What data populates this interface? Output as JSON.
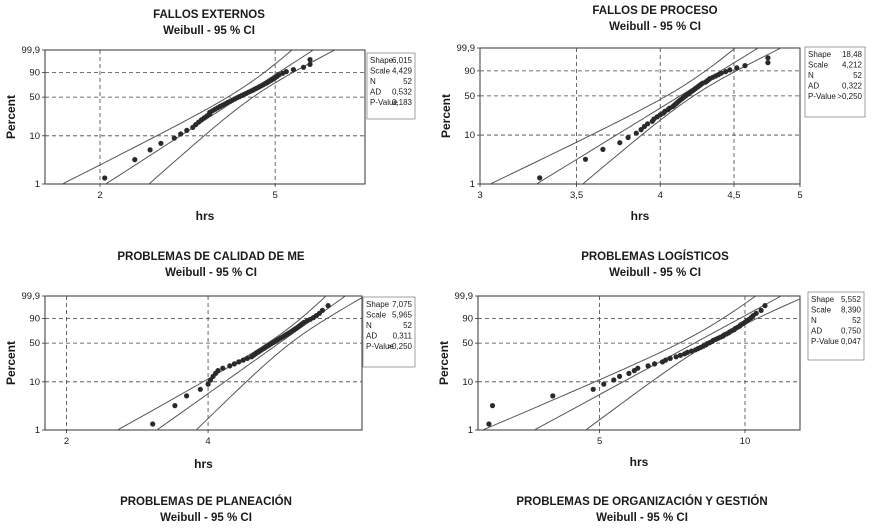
{
  "chart_data": [
    {
      "type": "scatter",
      "title": "FALLOS EXTERNOS",
      "subtitle": "Weibull - 95 % CI",
      "xlabel": "hrs",
      "ylabel": "Percent",
      "x_scale": "log",
      "y_scale": "weibull-probability",
      "x_ticks": [
        "2",
        "5"
      ],
      "y_ticks": [
        "1",
        "10",
        "50",
        "90",
        "99,9"
      ],
      "xlim": [
        1.5,
        8
      ],
      "stats": [
        {
          "label": "Shape",
          "value": "6,015"
        },
        {
          "label": "Scale",
          "value": "4,429"
        },
        {
          "label": "N",
          "value": "52"
        },
        {
          "label": "AD",
          "value": "0,532"
        },
        {
          "label": "P-Value",
          "value": "0,183"
        }
      ],
      "shape": 6.015,
      "scale": 4.429,
      "n": 52,
      "points": [
        2.05,
        2.4,
        2.6,
        2.75,
        2.95,
        3.05,
        3.15,
        3.25,
        3.3,
        3.35,
        3.4,
        3.45,
        3.5,
        3.55,
        3.55,
        3.6,
        3.65,
        3.7,
        3.75,
        3.8,
        3.85,
        3.9,
        3.95,
        4.0,
        4.05,
        4.1,
        4.15,
        4.2,
        4.25,
        4.3,
        4.35,
        4.4,
        4.45,
        4.5,
        4.55,
        4.6,
        4.65,
        4.7,
        4.75,
        4.8,
        4.85,
        4.9,
        4.95,
        5.0,
        5.05,
        5.1,
        5.2,
        5.3,
        5.5,
        5.8,
        6.0,
        6.0
      ]
    },
    {
      "type": "scatter",
      "title": "FALLOS DE PROCESO",
      "subtitle": "Weibull - 95 % CI",
      "xlabel": "hrs",
      "ylabel": "Percent",
      "x_scale": "log",
      "y_scale": "weibull-probability",
      "x_ticks": [
        "3",
        "3,5",
        "4",
        "4,5",
        "5"
      ],
      "y_ticks": [
        "1",
        "10",
        "50",
        "90",
        "99,9"
      ],
      "xlim": [
        3,
        5
      ],
      "stats": [
        {
          "label": "Shape",
          "value": "18,48"
        },
        {
          "label": "Scale",
          "value": "4,212"
        },
        {
          "label": "N",
          "value": "52"
        },
        {
          "label": "AD",
          "value": "0,322"
        },
        {
          "label": "P-Value",
          "value": ">0,250"
        }
      ],
      "shape": 18.48,
      "scale": 4.212,
      "n": 52,
      "points": [
        3.3,
        3.55,
        3.65,
        3.75,
        3.8,
        3.85,
        3.88,
        3.9,
        3.92,
        3.95,
        3.96,
        3.98,
        4.0,
        4.02,
        4.03,
        4.05,
        4.06,
        4.08,
        4.09,
        4.1,
        4.11,
        4.12,
        4.13,
        4.14,
        4.15,
        4.16,
        4.17,
        4.18,
        4.19,
        4.2,
        4.21,
        4.22,
        4.23,
        4.24,
        4.25,
        4.26,
        4.27,
        4.28,
        4.3,
        4.31,
        4.32,
        4.33,
        4.35,
        4.37,
        4.39,
        4.41,
        4.44,
        4.47,
        4.52,
        4.58,
        4.75,
        4.75
      ]
    },
    {
      "type": "scatter",
      "title": "PROBLEMAS DE CALIDAD DE ME",
      "subtitle": "Weibull - 95 % CI",
      "xlabel": "hrs",
      "ylabel": "Percent",
      "x_scale": "log",
      "y_scale": "weibull-probability",
      "x_ticks": [
        "2",
        "4"
      ],
      "y_ticks": [
        "1",
        "10",
        "50",
        "90",
        "99,9"
      ],
      "xlim": [
        1.8,
        8.5
      ],
      "stats": [
        {
          "label": "Shape",
          "value": "7,075"
        },
        {
          "label": "Scale",
          "value": "5,965"
        },
        {
          "label": "N",
          "value": "52"
        },
        {
          "label": "AD",
          "value": "0,311"
        },
        {
          "label": "P-Value",
          "value": ">0,250"
        }
      ],
      "shape": 7.075,
      "scale": 5.965,
      "n": 52,
      "points": [
        3.05,
        3.4,
        3.6,
        3.85,
        4.0,
        4.05,
        4.1,
        4.15,
        4.2,
        4.3,
        4.45,
        4.55,
        4.65,
        4.75,
        4.85,
        4.95,
        5.0,
        5.05,
        5.1,
        5.15,
        5.2,
        5.25,
        5.3,
        5.35,
        5.4,
        5.45,
        5.5,
        5.55,
        5.6,
        5.65,
        5.7,
        5.75,
        5.8,
        5.85,
        5.9,
        5.95,
        6.0,
        6.05,
        6.1,
        6.15,
        6.2,
        6.25,
        6.3,
        6.35,
        6.4,
        6.5,
        6.6,
        6.7,
        6.8,
        6.9,
        7.0,
        7.2
      ]
    },
    {
      "type": "scatter",
      "title": "PROBLEMAS LOGÍSTICOS",
      "subtitle": "Weibull - 95 % CI",
      "xlabel": "hrs",
      "ylabel": "Percent",
      "x_scale": "log",
      "y_scale": "weibull-probability",
      "x_ticks": [
        "5",
        "10"
      ],
      "y_ticks": [
        "1",
        "10",
        "50",
        "90",
        "99,9"
      ],
      "xlim": [
        2.8,
        13
      ],
      "stats": [
        {
          "label": "Shape",
          "value": "5,552"
        },
        {
          "label": "Scale",
          "value": "8,390"
        },
        {
          "label": "N",
          "value": "52"
        },
        {
          "label": "AD",
          "value": "0,750"
        },
        {
          "label": "P-Value",
          "value": "0,047"
        }
      ],
      "shape": 5.552,
      "scale": 8.39,
      "n": 52,
      "points": [
        2.95,
        3.0,
        4.0,
        4.85,
        5.1,
        5.35,
        5.5,
        5.75,
        5.9,
        6.0,
        6.3,
        6.5,
        6.75,
        6.85,
        7.0,
        7.2,
        7.35,
        7.5,
        7.6,
        7.75,
        7.9,
        8.0,
        8.1,
        8.2,
        8.3,
        8.35,
        8.45,
        8.55,
        8.6,
        8.7,
        8.8,
        8.9,
        9.0,
        9.05,
        9.15,
        9.25,
        9.3,
        9.4,
        9.5,
        9.55,
        9.65,
        9.75,
        9.8,
        9.9,
        10.0,
        10.1,
        10.2,
        10.3,
        10.4,
        10.55,
        10.8,
        11.0
      ]
    },
    {
      "type": "scatter",
      "title": "PROBLEMAS DE PLANEACIÓN",
      "subtitle": "Weibull - 95 % CI"
    },
    {
      "type": "scatter",
      "title": "PROBLEMAS DE ORGANIZACIÓN Y GESTIÓN",
      "subtitle": "Weibull - 95 % CI"
    }
  ]
}
